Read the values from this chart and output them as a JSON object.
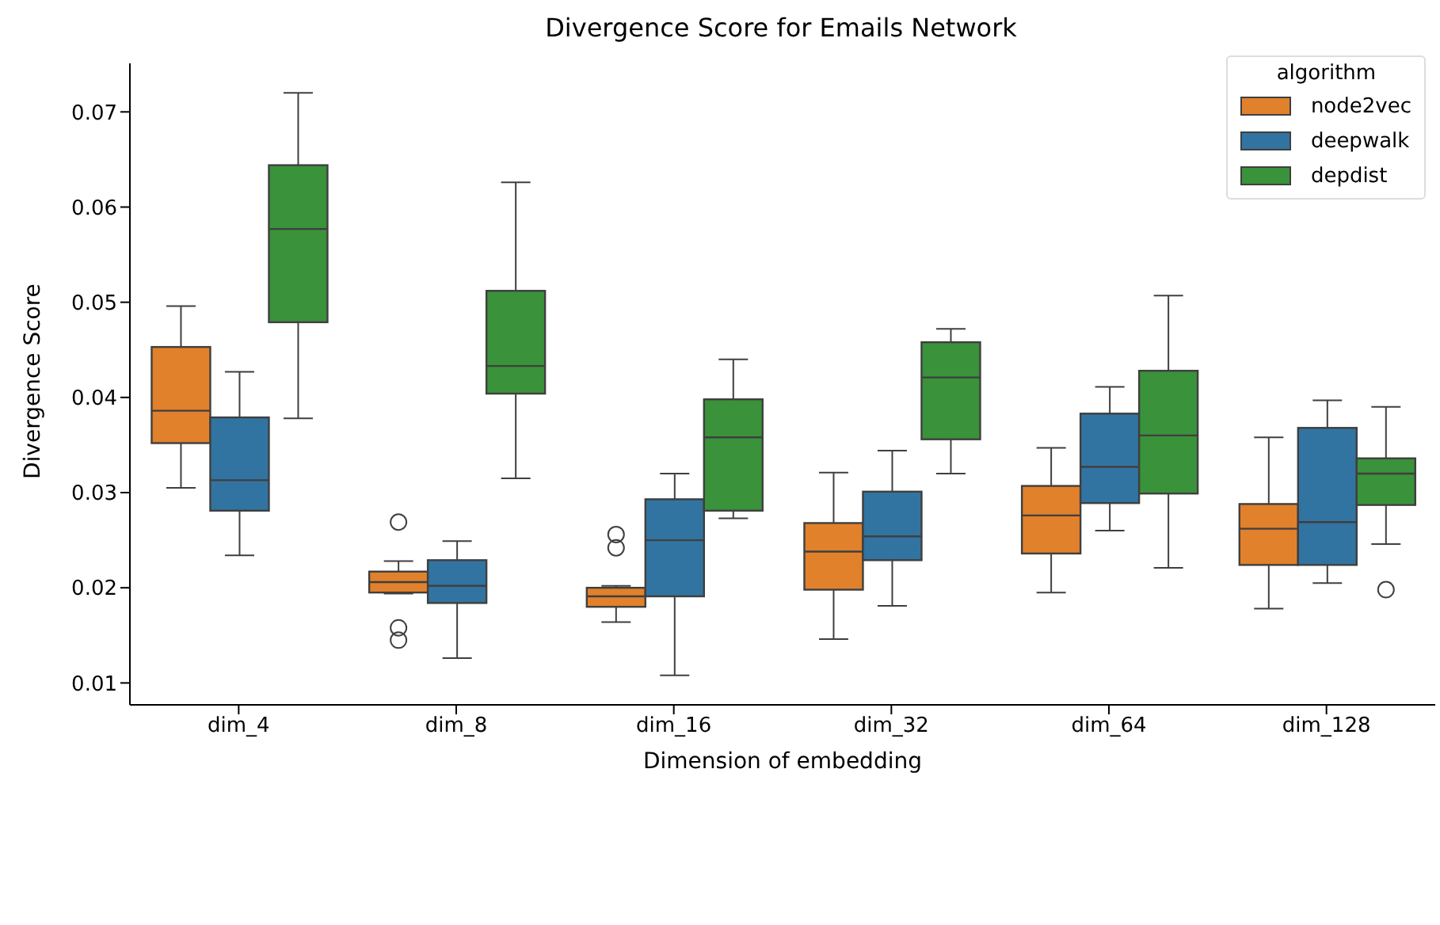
{
  "chart_data": {
    "type": "box",
    "title": "Divergence Score for Emails Network",
    "xlabel": "Dimension of embedding",
    "ylabel": "Divergence Score",
    "legend_title": "algorithm",
    "legend": "top right",
    "categories": [
      "dim_4",
      "dim_8",
      "dim_16",
      "dim_32",
      "dim_64",
      "dim_128"
    ],
    "ylim": [
      0.0077,
      0.0751
    ],
    "yticks": [
      0.01,
      0.02,
      0.03,
      0.04,
      0.05,
      0.06,
      0.07
    ],
    "series": [
      {
        "name": "node2vec",
        "color": "#e1812c",
        "boxes": [
          {
            "low": 0.0305,
            "q1": 0.0352,
            "median": 0.0386,
            "q3": 0.0453,
            "high": 0.0496
          },
          {
            "low": 0.0194,
            "q1": 0.0195,
            "median": 0.0206,
            "q3": 0.0217,
            "high": 0.0228,
            "outliers": [
              0.0269,
              0.0158,
              0.0145
            ]
          },
          {
            "low": 0.0164,
            "q1": 0.018,
            "median": 0.0191,
            "q3": 0.02,
            "high": 0.0202,
            "outliers": [
              0.0256,
              0.0242
            ]
          },
          {
            "low": 0.0146,
            "q1": 0.0198,
            "median": 0.0238,
            "q3": 0.0268,
            "high": 0.0321
          },
          {
            "low": 0.0195,
            "q1": 0.0236,
            "median": 0.0276,
            "q3": 0.0307,
            "high": 0.0347
          },
          {
            "low": 0.0178,
            "q1": 0.0224,
            "median": 0.0262,
            "q3": 0.0288,
            "high": 0.0358
          }
        ]
      },
      {
        "name": "deepwalk",
        "color": "#3274a1",
        "boxes": [
          {
            "low": 0.0234,
            "q1": 0.0281,
            "median": 0.0313,
            "q3": 0.0379,
            "high": 0.0427
          },
          {
            "low": 0.0126,
            "q1": 0.0184,
            "median": 0.0202,
            "q3": 0.0229,
            "high": 0.0249
          },
          {
            "low": 0.0108,
            "q1": 0.0191,
            "median": 0.025,
            "q3": 0.0293,
            "high": 0.032
          },
          {
            "low": 0.0181,
            "q1": 0.0229,
            "median": 0.0254,
            "q3": 0.0301,
            "high": 0.0344
          },
          {
            "low": 0.026,
            "q1": 0.0289,
            "median": 0.0327,
            "q3": 0.0383,
            "high": 0.0411
          },
          {
            "low": 0.0205,
            "q1": 0.0224,
            "median": 0.0269,
            "q3": 0.0368,
            "high": 0.0397
          }
        ]
      },
      {
        "name": "depdist",
        "color": "#3a923a",
        "boxes": [
          {
            "low": 0.0378,
            "q1": 0.0479,
            "median": 0.0577,
            "q3": 0.0644,
            "high": 0.072
          },
          {
            "low": 0.0315,
            "q1": 0.0404,
            "median": 0.0433,
            "q3": 0.0512,
            "high": 0.0626
          },
          {
            "low": 0.0273,
            "q1": 0.0281,
            "median": 0.0358,
            "q3": 0.0398,
            "high": 0.044
          },
          {
            "low": 0.032,
            "q1": 0.0356,
            "median": 0.0421,
            "q3": 0.0458,
            "high": 0.0472
          },
          {
            "low": 0.0221,
            "q1": 0.0299,
            "median": 0.036,
            "q3": 0.0428,
            "high": 0.0507
          },
          {
            "low": 0.0246,
            "q1": 0.0287,
            "median": 0.032,
            "q3": 0.0336,
            "high": 0.039,
            "outliers": [
              0.0198
            ]
          }
        ]
      }
    ]
  }
}
